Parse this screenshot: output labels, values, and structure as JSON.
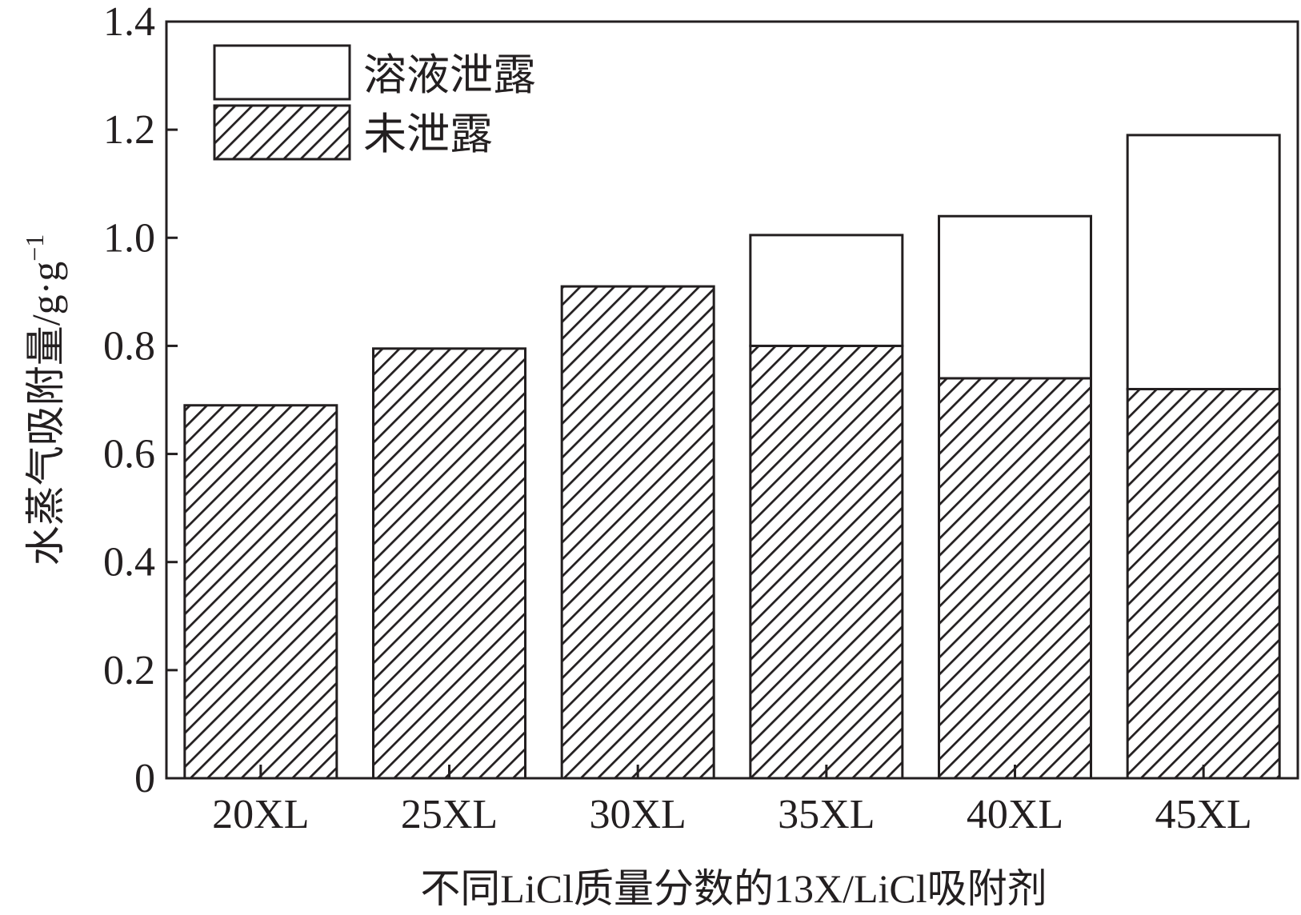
{
  "chart_data": {
    "type": "bar",
    "stacked": true,
    "categories": [
      "20XL",
      "25XL",
      "30XL",
      "35XL",
      "40XL",
      "45XL"
    ],
    "series": [
      {
        "name": "未泄露",
        "pattern": "hatched",
        "values": [
          0.69,
          0.795,
          0.91,
          0.8,
          0.74,
          0.72
        ]
      },
      {
        "name": "溶液泄露",
        "pattern": "white",
        "values": [
          0,
          0,
          0,
          0.205,
          0.3,
          0.47
        ]
      }
    ],
    "totals": [
      0.69,
      0.795,
      0.91,
      1.005,
      1.04,
      1.19
    ],
    "xlabel": "不同LiCl质量分数的13X/LiCl吸附剂",
    "ylabel": "水蒸气吸附量/g·g",
    "ylabel_sup": "−1",
    "ylim": [
      0,
      1.4
    ],
    "yticks": [
      "0",
      "0.2",
      "0.4",
      "0.6",
      "0.8",
      "1.0",
      "1.2",
      "1.4"
    ],
    "legend": {
      "position": "top-left",
      "entries": [
        {
          "label": "溶液泄露",
          "pattern": "white"
        },
        {
          "label": "未泄露",
          "pattern": "hatched"
        }
      ]
    },
    "grid": false,
    "colors": {
      "stroke": "#231f20",
      "background": "#ffffff"
    }
  }
}
